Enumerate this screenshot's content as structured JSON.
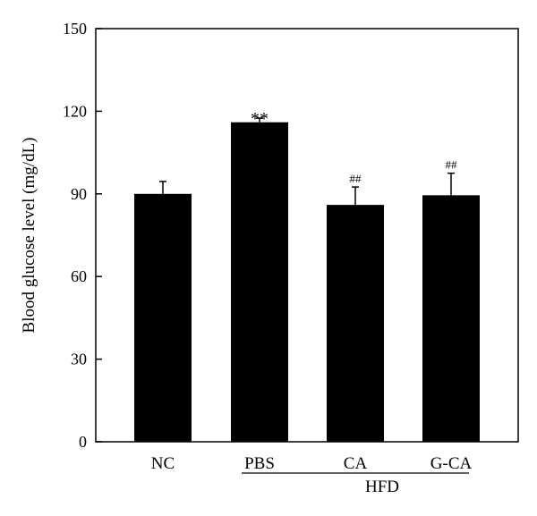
{
  "chart_data": {
    "type": "bar",
    "title": "",
    "xlabel": "",
    "ylabel": "Blood glucose level (mg/dL)",
    "ylim": [
      0,
      150
    ],
    "yticks": [
      0,
      30,
      60,
      90,
      120,
      150
    ],
    "grid": false,
    "categories": [
      "NC",
      "PBS",
      "CA",
      "G-CA"
    ],
    "values": [
      90,
      116,
      86,
      89.5
    ],
    "errors": [
      4.5,
      1.5,
      6.5,
      8
    ],
    "annotations": [
      "",
      "**",
      "##",
      "##"
    ],
    "group_label": {
      "text": "HFD",
      "categories": [
        "PBS",
        "CA",
        "G-CA"
      ]
    },
    "bar_color": "#000000"
  }
}
